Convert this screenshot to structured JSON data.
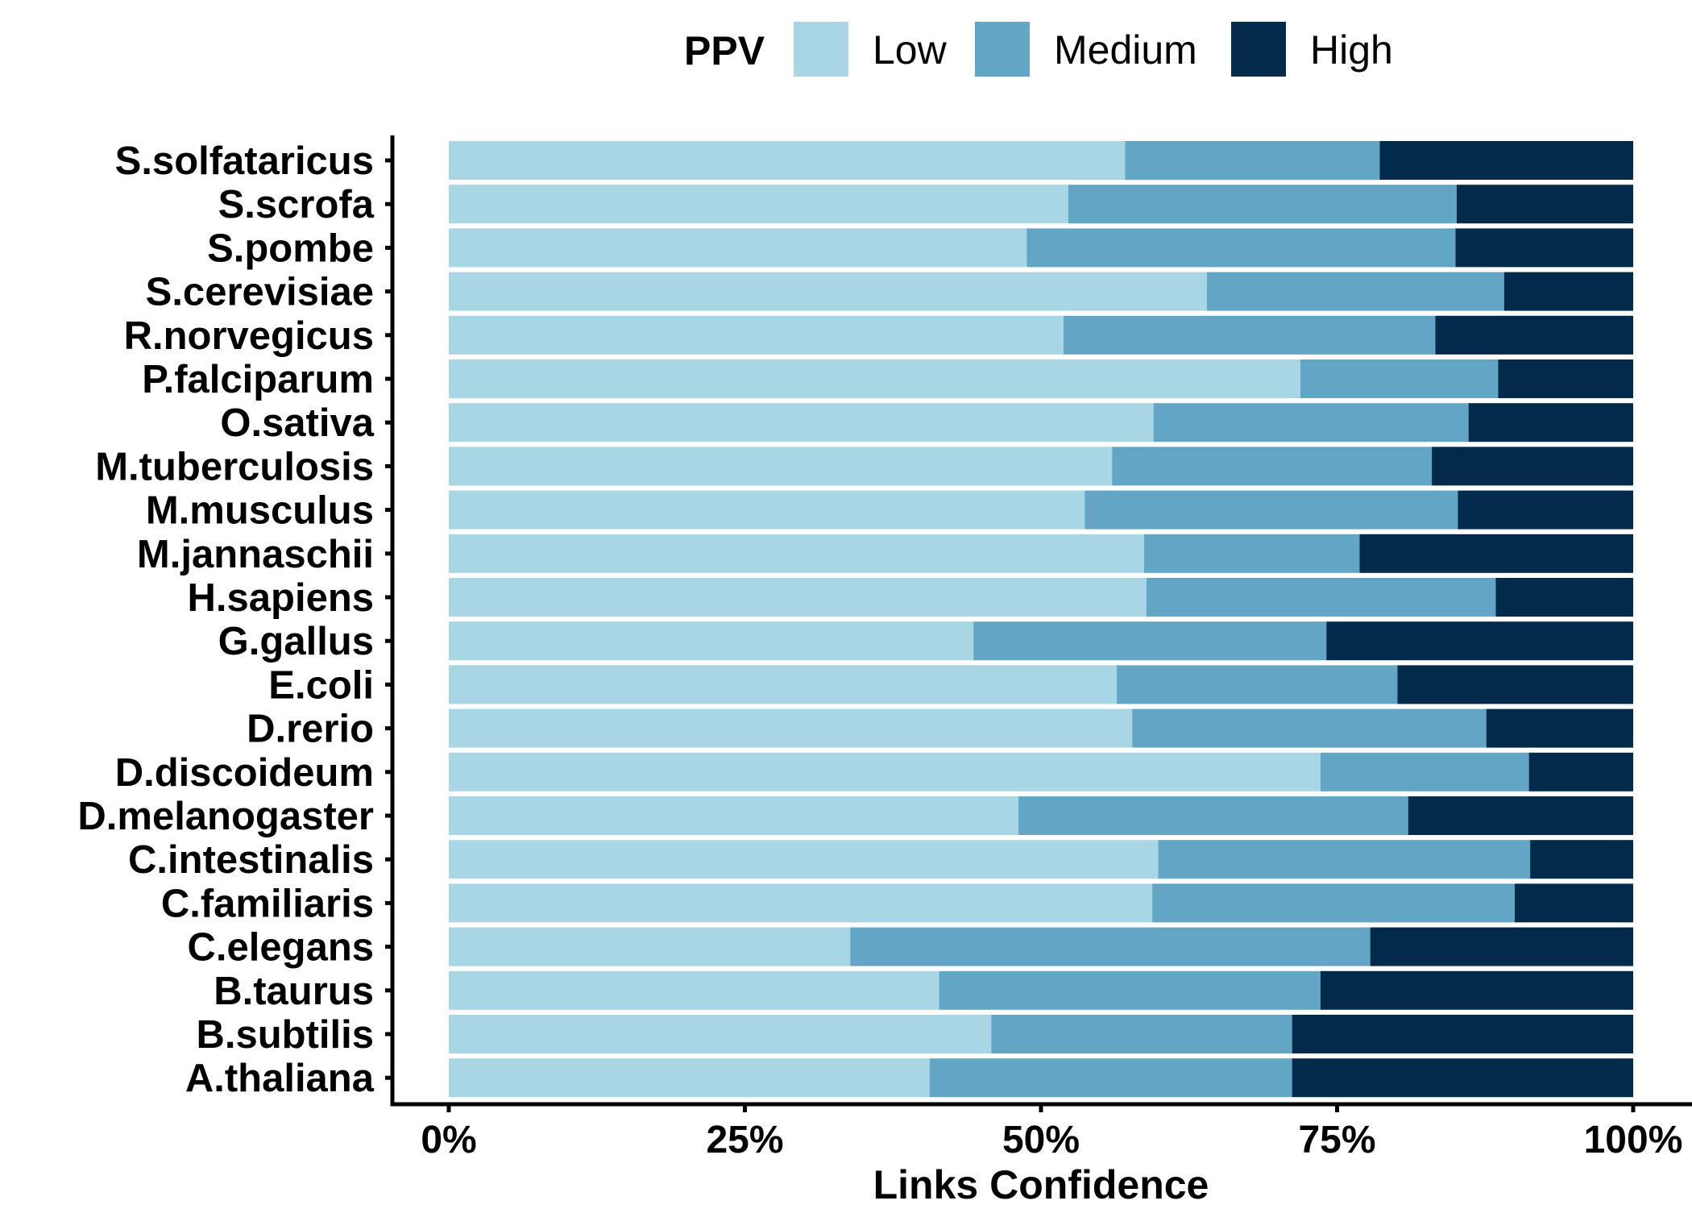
{
  "chart_data": {
    "type": "bar",
    "orientation": "horizontal",
    "stacked": "percent",
    "xlabel": "Links Confidence",
    "ylabel": "",
    "xlim": [
      0,
      100
    ],
    "x_ticks": [
      "0%",
      "25%",
      "50%",
      "75%",
      "100%"
    ],
    "grid": false,
    "legend": {
      "title": "PPV",
      "position": "top",
      "entries": [
        "Low",
        "Medium",
        "High"
      ]
    },
    "colors": {
      "Low": "#a9d6e5",
      "Medium": "#62a5c4",
      "High": "#022a4b"
    },
    "categories": [
      "S.solfataricus",
      "S.scrofa",
      "S.pombe",
      "S.cerevisiae",
      "R.norvegicus",
      "P.falciparum",
      "O.sativa",
      "M.tuberculosis",
      "M.musculus",
      "M.jannaschii",
      "H.sapiens",
      "G.gallus",
      "E.coli",
      "D.rerio",
      "D.discoideum",
      "D.melanogaster",
      "C.intestinalis",
      "C.familiaris",
      "C.elegans",
      "B.taurus",
      "B.subtilis",
      "A.thaliana"
    ],
    "series": [
      {
        "name": "Low",
        "values": [
          57.1,
          52.3,
          48.8,
          64.0,
          51.9,
          71.9,
          59.5,
          56.0,
          53.7,
          58.7,
          58.9,
          44.3,
          56.4,
          57.7,
          73.6,
          48.1,
          59.9,
          59.4,
          33.9,
          41.4,
          45.8,
          40.6
        ]
      },
      {
        "name": "Medium",
        "values": [
          21.5,
          32.8,
          36.2,
          25.1,
          31.4,
          16.7,
          26.6,
          27.0,
          31.5,
          18.2,
          29.5,
          29.8,
          23.7,
          29.9,
          17.6,
          32.9,
          31.4,
          30.6,
          43.9,
          32.2,
          25.4,
          30.6
        ]
      },
      {
        "name": "High",
        "values": [
          21.4,
          14.9,
          15.0,
          10.9,
          16.7,
          11.4,
          13.9,
          17.0,
          14.8,
          23.1,
          11.6,
          25.9,
          19.9,
          12.4,
          8.8,
          19.0,
          8.7,
          10.0,
          22.2,
          26.4,
          28.8,
          28.8
        ]
      }
    ]
  }
}
